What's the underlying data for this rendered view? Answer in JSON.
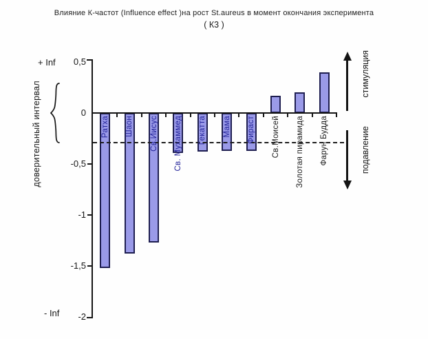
{
  "title": {
    "line1": "Влияние К-частот (Influence effect )на рост St.aureus в момент окончания эксперимента",
    "line2": "( К3 )"
  },
  "y_axis": {
    "label": "доверительный интервал",
    "plus_inf_label": "+ Inf",
    "minus_inf_label": "- Inf"
  },
  "right_annotations": {
    "up_label": "стимуляция",
    "down_label": "подавление"
  },
  "chart_data": {
    "type": "bar",
    "title": "Влияние К-частот (Influence effect )на рост St.aureus в момент окончания эксперимента ( К3 )",
    "categories": [
      "Ратха",
      "Шаон",
      "Св.Иисус",
      "Св. Мухаммед",
      "Гекатта",
      "Мама",
      "Фираст",
      "Св.Моисей",
      "Золотая пирамида",
      "Фарун Будда"
    ],
    "values": [
      -1.52,
      -1.38,
      -1.27,
      -0.39,
      -0.38,
      -0.37,
      -0.37,
      0.17,
      0.2,
      0.4
    ],
    "xlabel": "",
    "ylabel": "доверительный интервал",
    "ylim": [
      -2,
      0.5
    ],
    "y_ticks": [
      {
        "label": "0,5",
        "value": 0.5
      },
      {
        "label": "0",
        "value": 0
      },
      {
        "label": "-0,5",
        "value": -0.5
      },
      {
        "label": "-1",
        "value": -1
      },
      {
        "label": "-1,5",
        "value": -1.5
      },
      {
        "label": "-2",
        "value": -2
      }
    ],
    "dashed_line_y": -0.29,
    "grid": false,
    "legend": false,
    "bar_color": "#9a9ae8",
    "bar_border_color": "#1e1e50",
    "on_bar_label_color": "#222299",
    "off_bar_label_color": "#1a1a1a",
    "axis_color": "#141414"
  }
}
